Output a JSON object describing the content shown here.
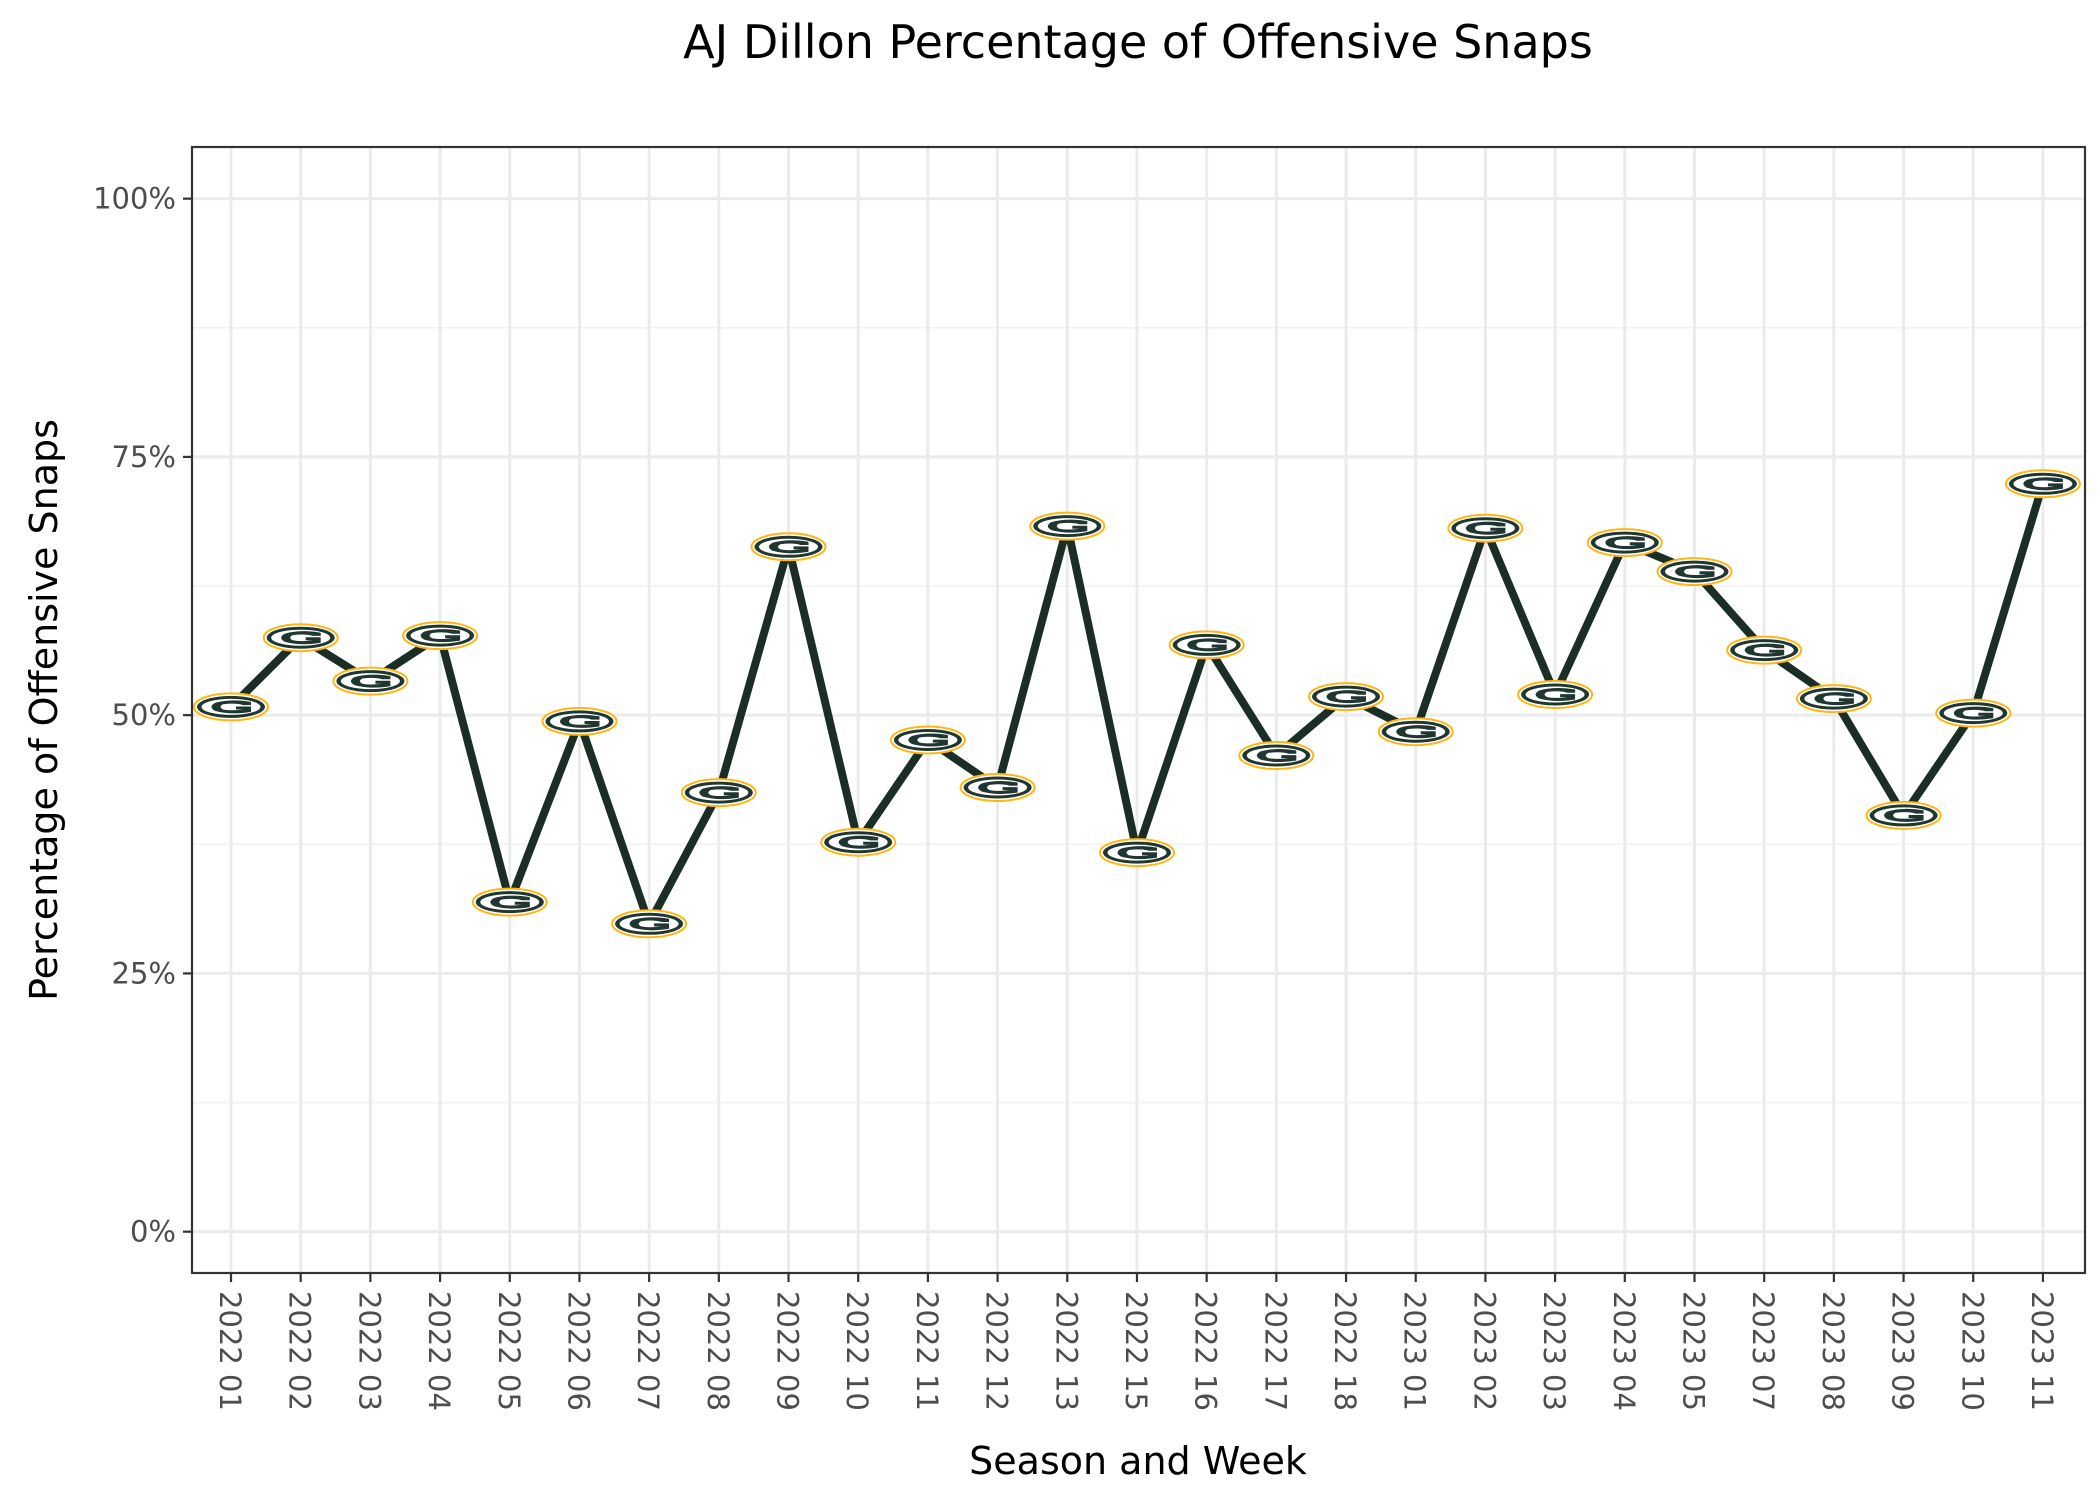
{
  "chart_data": {
    "type": "line",
    "title": "AJ Dillon Percentage of Offensive Snaps",
    "xlabel": "Season and Week",
    "ylabel": "Percentage of Offensive Snaps",
    "ylim": [
      -0.04,
      1.05
    ],
    "y_ticks": [
      0,
      0.25,
      0.5,
      0.75,
      1.0
    ],
    "y_tick_labels": [
      "0%",
      "25%",
      "50%",
      "75%",
      "100%"
    ],
    "grid": true,
    "legend": "none",
    "marker": "team-logo-icon",
    "categories": [
      "2022 01",
      "2022 02",
      "2022 03",
      "2022 04",
      "2022 05",
      "2022 06",
      "2022 07",
      "2022 08",
      "2022 09",
      "2022 10",
      "2022 11",
      "2022 12",
      "2022 13",
      "2022 15",
      "2022 16",
      "2022 17",
      "2022 18",
      "2023 01",
      "2023 02",
      "2023 03",
      "2023 04",
      "2023 05",
      "2023 07",
      "2023 08",
      "2023 09",
      "2023 10",
      "2023 11"
    ],
    "values": [
      0.508,
      0.575,
      0.533,
      0.577,
      0.319,
      0.494,
      0.298,
      0.425,
      0.663,
      0.377,
      0.476,
      0.43,
      0.683,
      0.367,
      0.568,
      0.461,
      0.518,
      0.484,
      0.681,
      0.52,
      0.667,
      0.639,
      0.563,
      0.516,
      0.403,
      0.502,
      0.724
    ],
    "colors": {
      "line": "#1a2e26",
      "logo_green": "#203731",
      "logo_gold": "#ffb612",
      "logo_white": "#ffffff"
    }
  }
}
